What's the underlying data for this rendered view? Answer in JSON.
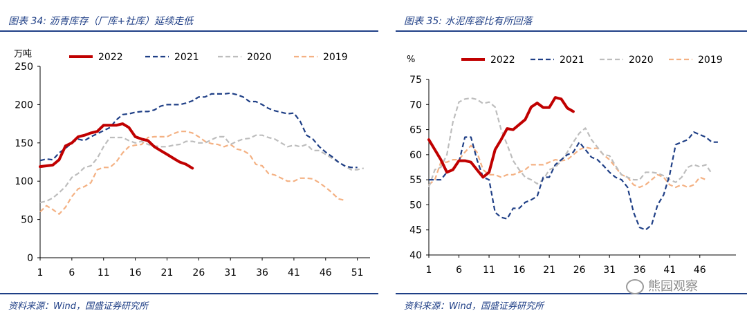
{
  "panels": [
    {
      "title": "图表 34:  沥青库存（厂库+社库）延续走低",
      "source": "资料来源：Wind，国盛证券研究所"
    },
    {
      "title": "图表 35:  水泥库容比有所回落",
      "source": "资料来源：Wind，国盛证券研究所"
    }
  ],
  "watermark": {
    "text": "熊园观察",
    "icon": "wechat-icon"
  },
  "chart_data": [
    {
      "type": "line",
      "title": "",
      "unit": "万吨",
      "xlabel": "",
      "ylabel": "",
      "xlim": [
        1,
        53
      ],
      "xticks": [
        1,
        6,
        11,
        16,
        21,
        26,
        31,
        36,
        41,
        46,
        51
      ],
      "ylim": [
        0,
        250
      ],
      "yticks": [
        0,
        50,
        100,
        150,
        200,
        250
      ],
      "grid": false,
      "legend": "top",
      "series": [
        {
          "name": "2022",
          "color": "#c00000",
          "dash": "solid",
          "width": 4,
          "values": [
            119,
            120,
            121,
            128,
            146,
            150,
            158,
            160,
            163,
            165,
            173,
            173,
            173,
            175,
            170,
            158,
            155,
            153,
            145,
            140,
            135,
            130,
            125,
            122,
            117
          ]
        },
        {
          "name": "2021",
          "color": "#1f3f86",
          "dash": "dash",
          "width": 2.2,
          "values": [
            127,
            129,
            128,
            137,
            143,
            150,
            155,
            153,
            158,
            162,
            166,
            170,
            180,
            187,
            188,
            190,
            191,
            191,
            193,
            198,
            200,
            200,
            200,
            202,
            205,
            210,
            210,
            214,
            214,
            214,
            215,
            213,
            210,
            204,
            204,
            200,
            195,
            192,
            190,
            188,
            189,
            178,
            160,
            155,
            145,
            138,
            132,
            125,
            120,
            118,
            118
          ]
        },
        {
          "name": "2020",
          "color": "#bdbdbd",
          "dash": "dash",
          "width": 2.2,
          "values": [
            72,
            74,
            78,
            85,
            93,
            105,
            110,
            118,
            120,
            130,
            145,
            157,
            157,
            157,
            153,
            150,
            152,
            148,
            146,
            145,
            145,
            147,
            148,
            152,
            152,
            150,
            150,
            154,
            158,
            158,
            148,
            152,
            155,
            156,
            160,
            160,
            157,
            155,
            150,
            145,
            147,
            145,
            148,
            140,
            140,
            135,
            130,
            125,
            120,
            115,
            115,
            117
          ]
        },
        {
          "name": "2019",
          "color": "#f4b183",
          "dash": "dash",
          "width": 2.2,
          "values": [
            60,
            68,
            63,
            57,
            66,
            80,
            90,
            93,
            98,
            115,
            118,
            118,
            125,
            137,
            145,
            147,
            148,
            157,
            158,
            158,
            158,
            162,
            165,
            165,
            163,
            158,
            152,
            149,
            148,
            145,
            148,
            142,
            140,
            135,
            122,
            120,
            110,
            108,
            104,
            100,
            100,
            104,
            104,
            103,
            98,
            92,
            85,
            77,
            75
          ]
        }
      ]
    },
    {
      "type": "line",
      "title": "",
      "unit": "%",
      "xlabel": "",
      "ylabel": "",
      "xlim": [
        1,
        52
      ],
      "xticks": [
        1,
        6,
        11,
        16,
        21,
        26,
        31,
        36,
        41,
        46
      ],
      "ylim": [
        40,
        75
      ],
      "yticks": [
        40,
        45,
        50,
        55,
        60,
        65,
        70,
        75
      ],
      "grid": false,
      "legend": "top",
      "series": [
        {
          "name": "2022",
          "color": "#c00000",
          "dash": "solid",
          "width": 4,
          "values": [
            63,
            61,
            59,
            56.5,
            57,
            58.8,
            58.8,
            58.5,
            57,
            55.5,
            56.5,
            61,
            63,
            65.2,
            65,
            66,
            67,
            69.5,
            70.3,
            69.4,
            69.4,
            71.4,
            71.1,
            69.3,
            68.6
          ]
        },
        {
          "name": "2021",
          "color": "#1f3f86",
          "dash": "dash",
          "width": 2.2,
          "values": [
            55,
            55,
            55,
            56.5,
            57,
            58.5,
            63.5,
            63.5,
            59,
            55.5,
            55,
            48.5,
            47.5,
            47.2,
            49.3,
            49.3,
            50.5,
            51,
            51.7,
            55.5,
            55.5,
            58,
            59,
            60,
            60.5,
            62.5,
            61,
            59.5,
            59,
            57.8,
            56.5,
            55.5,
            55,
            53.5,
            48.5,
            45.5,
            45,
            46,
            50,
            52,
            56,
            62,
            62.5,
            63,
            64.5,
            64,
            63.5,
            62.5,
            62.5
          ]
        },
        {
          "name": "2020",
          "color": "#bdbdbd",
          "dash": "dash",
          "width": 2.2,
          "values": [
            53.5,
            57,
            57.5,
            60,
            66.5,
            70.5,
            71.1,
            71.3,
            71,
            70.2,
            70.5,
            69.5,
            65,
            62,
            58.8,
            57,
            55.5,
            55,
            54.2,
            55,
            57,
            57.5,
            58.8,
            60.5,
            62.5,
            64.3,
            65.3,
            63,
            61.5,
            60,
            59.8,
            57.8,
            56,
            55.5,
            55,
            55,
            56.5,
            56.5,
            56.3,
            55.8,
            55,
            54.5,
            55.5,
            57.5,
            58,
            57.6,
            58,
            56.2
          ]
        },
        {
          "name": "2019",
          "color": "#f4b183",
          "dash": "dash",
          "width": 2.2,
          "values": [
            54,
            55,
            58.5,
            58.5,
            59,
            59,
            60.5,
            61.8,
            60.5,
            57,
            56,
            56,
            55.5,
            56,
            56,
            56.5,
            57,
            58,
            58,
            58,
            58.5,
            59,
            58.8,
            59,
            60,
            61,
            61.5,
            61.2,
            61.3,
            60,
            59,
            57.5,
            56,
            55.5,
            54,
            53.5,
            54,
            55,
            56,
            55.5,
            54,
            53.5,
            54,
            53.5,
            54,
            55.5,
            55
          ]
        }
      ]
    }
  ]
}
